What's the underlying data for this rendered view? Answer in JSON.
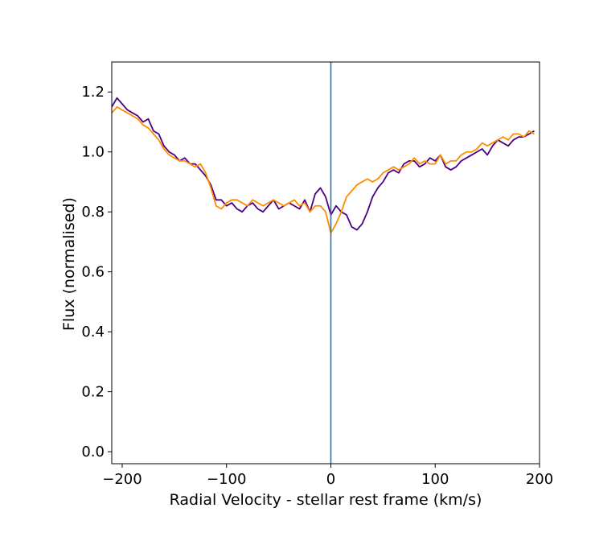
{
  "chart_data": {
    "type": "line",
    "title": "",
    "xlabel": "Radial Velocity - stellar rest frame (km/s)",
    "ylabel": "Flux (normalised)",
    "xlim": [
      -210,
      200
    ],
    "ylim": [
      -0.04,
      1.3
    ],
    "xticks": [
      -200,
      -100,
      0,
      100,
      200
    ],
    "xtick_labels": [
      "−200",
      "−100",
      "0",
      "100",
      "200"
    ],
    "yticks": [
      0.0,
      0.2,
      0.4,
      0.6,
      0.8,
      1.0,
      1.2
    ],
    "ytick_labels": [
      "0.0",
      "0.2",
      "0.4",
      "0.6",
      "0.8",
      "1.0",
      "1.2"
    ],
    "grid": false,
    "legend": "none",
    "vline": {
      "x": 0,
      "color": "#1f77b4"
    },
    "series": [
      {
        "color": "#4b0082",
        "x": [
          -210,
          -205,
          -200,
          -195,
          -190,
          -185,
          -180,
          -175,
          -170,
          -165,
          -160,
          -155,
          -150,
          -145,
          -140,
          -135,
          -130,
          -125,
          -120,
          -115,
          -110,
          -105,
          -100,
          -95,
          -90,
          -85,
          -80,
          -75,
          -70,
          -65,
          -60,
          -55,
          -50,
          -45,
          -40,
          -35,
          -30,
          -25,
          -20,
          -15,
          -10,
          -5,
          0,
          5,
          10,
          15,
          20,
          25,
          30,
          35,
          40,
          45,
          50,
          55,
          60,
          65,
          70,
          75,
          80,
          85,
          90,
          95,
          100,
          105,
          110,
          115,
          120,
          125,
          130,
          135,
          140,
          145,
          150,
          155,
          160,
          165,
          170,
          175,
          180,
          185,
          190,
          195
        ],
        "y": [
          1.15,
          1.18,
          1.16,
          1.14,
          1.13,
          1.12,
          1.1,
          1.11,
          1.07,
          1.06,
          1.02,
          1.0,
          0.99,
          0.97,
          0.98,
          0.96,
          0.96,
          0.94,
          0.92,
          0.89,
          0.84,
          0.84,
          0.82,
          0.83,
          0.81,
          0.8,
          0.82,
          0.83,
          0.81,
          0.8,
          0.82,
          0.84,
          0.81,
          0.82,
          0.83,
          0.82,
          0.81,
          0.84,
          0.8,
          0.86,
          0.88,
          0.85,
          0.79,
          0.82,
          0.8,
          0.79,
          0.75,
          0.74,
          0.76,
          0.8,
          0.85,
          0.88,
          0.9,
          0.93,
          0.94,
          0.93,
          0.96,
          0.97,
          0.97,
          0.95,
          0.96,
          0.98,
          0.97,
          0.99,
          0.95,
          0.94,
          0.95,
          0.97,
          0.98,
          0.99,
          1.0,
          1.01,
          0.99,
          1.02,
          1.04,
          1.03,
          1.02,
          1.04,
          1.05,
          1.05,
          1.06,
          1.07
        ]
      },
      {
        "color": "#ff8c00",
        "x": [
          -210,
          -205,
          -200,
          -195,
          -190,
          -185,
          -180,
          -175,
          -170,
          -165,
          -160,
          -155,
          -150,
          -145,
          -140,
          -135,
          -130,
          -125,
          -120,
          -115,
          -110,
          -105,
          -100,
          -95,
          -90,
          -85,
          -80,
          -75,
          -70,
          -65,
          -60,
          -55,
          -50,
          -45,
          -40,
          -35,
          -30,
          -25,
          -20,
          -15,
          -10,
          -5,
          0,
          5,
          10,
          15,
          20,
          25,
          30,
          35,
          40,
          45,
          50,
          55,
          60,
          65,
          70,
          75,
          80,
          85,
          90,
          95,
          100,
          105,
          110,
          115,
          120,
          125,
          130,
          135,
          140,
          145,
          150,
          155,
          160,
          165,
          170,
          175,
          180,
          185,
          190,
          195
        ],
        "y": [
          1.13,
          1.15,
          1.14,
          1.13,
          1.12,
          1.11,
          1.09,
          1.08,
          1.06,
          1.04,
          1.01,
          0.99,
          0.98,
          0.97,
          0.97,
          0.96,
          0.95,
          0.96,
          0.93,
          0.88,
          0.82,
          0.81,
          0.83,
          0.84,
          0.84,
          0.83,
          0.82,
          0.84,
          0.83,
          0.82,
          0.83,
          0.84,
          0.83,
          0.82,
          0.83,
          0.84,
          0.82,
          0.83,
          0.8,
          0.82,
          0.82,
          0.8,
          0.73,
          0.76,
          0.8,
          0.85,
          0.87,
          0.89,
          0.9,
          0.91,
          0.9,
          0.91,
          0.93,
          0.94,
          0.95,
          0.94,
          0.95,
          0.96,
          0.98,
          0.96,
          0.97,
          0.96,
          0.96,
          0.99,
          0.96,
          0.97,
          0.97,
          0.99,
          1.0,
          1.0,
          1.01,
          1.03,
          1.02,
          1.03,
          1.04,
          1.05,
          1.04,
          1.06,
          1.06,
          1.05,
          1.07,
          1.06
        ]
      }
    ]
  }
}
